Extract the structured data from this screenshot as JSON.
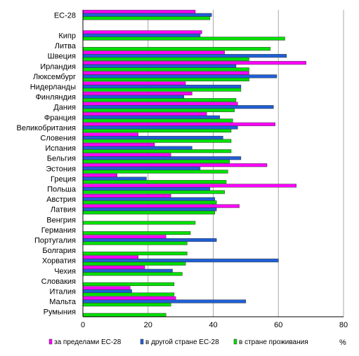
{
  "chart_data": {
    "type": "bar",
    "orientation": "horizontal",
    "title": "",
    "xlabel": "%",
    "ylabel": "",
    "xlim": [
      0,
      80
    ],
    "x_ticks": [
      0,
      20,
      40,
      60,
      80
    ],
    "grid": "vertical",
    "legend_position": "bottom",
    "categories": [
      "ЕС-28",
      "",
      "Кипр",
      "Литва",
      "Швеция",
      "Ирландия",
      "Люксембург",
      "Нидерланды",
      "Финляндия",
      "Дания",
      "Франция",
      "Великобритания",
      "Словения",
      "Испания",
      "Бельгия",
      "Эстония",
      "Греция",
      "Польша",
      "Австрия",
      "Латвия",
      "Венгрия",
      "Германия",
      "Португалия",
      "Болгария",
      "Хорватия",
      "Чехия",
      "Словакия",
      "Италия",
      "Мальта",
      "Румыния"
    ],
    "series": [
      {
        "name": "за пределами ЕС-28",
        "color": "#ff00ff",
        "values": [
          34.5,
          null,
          36.5,
          0,
          43.5,
          68.5,
          51,
          31.5,
          33.5,
          47.5,
          38,
          59,
          17,
          22,
          27,
          56.5,
          10.5,
          65.5,
          27,
          48,
          0,
          0,
          25.5,
          0,
          17,
          19,
          0,
          14.5,
          28.5,
          0
        ]
      },
      {
        "name": "в другой стране ЕС-28",
        "color": "#1f5fd6",
        "values": [
          39.5,
          null,
          36,
          0,
          62.5,
          47,
          59.5,
          48.5,
          31,
          58.5,
          42,
          47.5,
          43,
          33.5,
          48.5,
          36,
          19.5,
          39,
          40.5,
          41,
          0,
          0,
          41,
          0,
          60,
          27.5,
          0,
          15,
          50,
          0
        ]
      },
      {
        "name": "в стране проживания",
        "color": "#00e000",
        "values": [
          39,
          null,
          62,
          57.5,
          51,
          51,
          51,
          48.5,
          47,
          46.5,
          46,
          45.5,
          45.5,
          45.5,
          45,
          44.5,
          44,
          43.5,
          41,
          40.5,
          34.5,
          33,
          32,
          32,
          31.5,
          30.5,
          28,
          28,
          27,
          25.5
        ]
      }
    ]
  }
}
